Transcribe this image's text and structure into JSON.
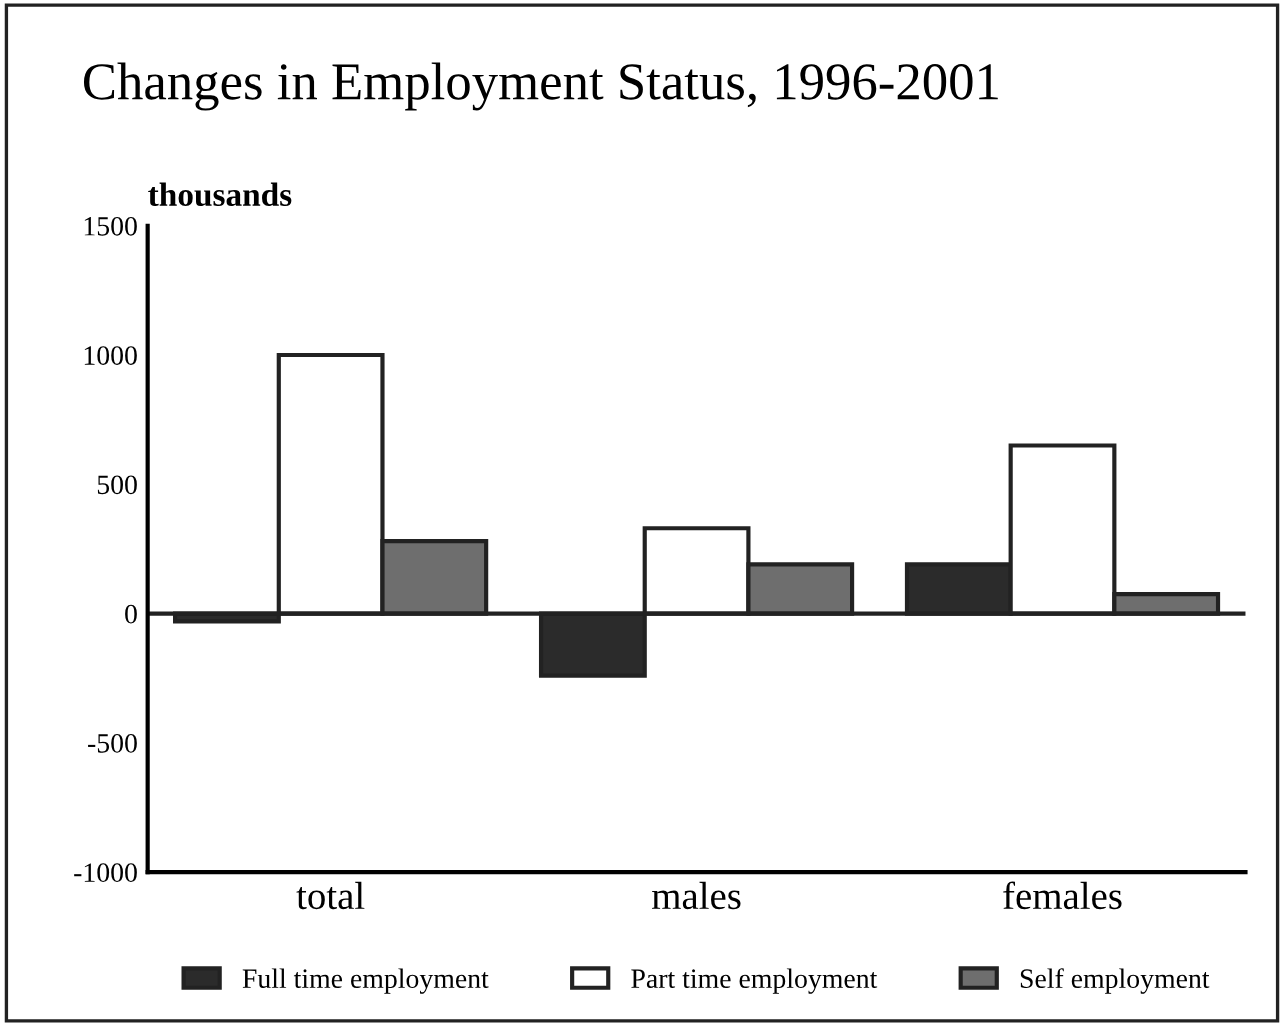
{
  "chart_data": {
    "type": "bar",
    "title": "Changes in Employment Status, 1996-2001",
    "ylabel": "thousands",
    "categories": [
      "total",
      "males",
      "females"
    ],
    "series": [
      {
        "name": "Full time employment",
        "color": "#2b2b2b",
        "values": [
          -30,
          -240,
          190
        ]
      },
      {
        "name": "Part time employment",
        "color": "#ffffff",
        "values": [
          1000,
          330,
          650
        ]
      },
      {
        "name": "Self employment",
        "color": "#6e6e6e",
        "values": [
          280,
          190,
          75
        ]
      }
    ],
    "ylim": [
      -1000,
      1500
    ],
    "yticks": [
      -1000,
      -500,
      0,
      500,
      1000,
      1500
    ],
    "ref_lines": [
      {
        "axis": "y",
        "value": 0
      }
    ],
    "legend": "bottom"
  }
}
